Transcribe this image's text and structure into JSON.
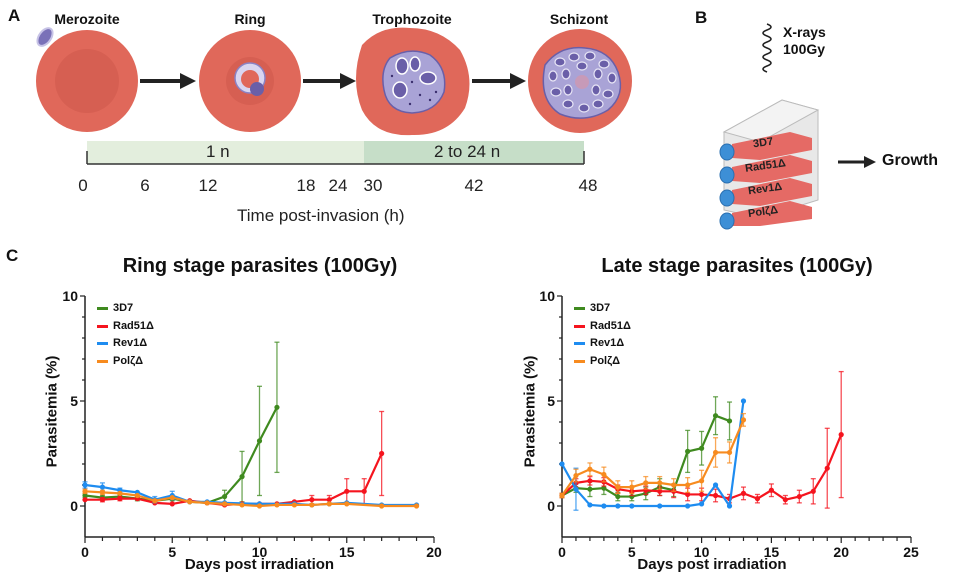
{
  "panel_a": {
    "letter": "A",
    "stages": [
      "Merozoite",
      "Ring",
      "Trophozoite",
      "Schizont"
    ],
    "timeline": {
      "segments": [
        {
          "label": "1 n",
          "color": "#e3eedd"
        },
        {
          "label": "2 to 24 n",
          "color": "#c6dec8"
        }
      ],
      "ticks": [
        "0",
        "6",
        "12",
        "18",
        "24",
        "30",
        "42",
        "48"
      ],
      "axis_label": "Time post-invasion (h)"
    }
  },
  "panel_b": {
    "letter": "B",
    "xray_line1": "X-rays",
    "xray_line2": "100Gy",
    "flasks": [
      "3D7",
      "Rad51Δ",
      "Rev1Δ",
      "PolζΔ"
    ],
    "growth_label": "Growth"
  },
  "panel_c": {
    "letter": "C"
  },
  "colors": {
    "rbc": "#e0685a",
    "rbc_dark": "#d85e50",
    "parasite": "#a9a3d6",
    "parasite_dark": "#6a5fa8",
    "cap": "#3d8fd6",
    "3D7": "#3f8a1f",
    "Rad51": "#f5141e",
    "Rev1": "#1e8cf0",
    "Polz": "#f78b1f"
  },
  "chart_data": [
    {
      "type": "line",
      "title": "Ring stage parasites (100Gy)",
      "xlabel": "Days post irradiation",
      "ylabel": "Parasitemia (%)",
      "xlim": [
        0,
        20
      ],
      "ylim": [
        -1.5,
        10
      ],
      "xticks": [
        "0",
        "5",
        "10",
        "15",
        "20"
      ],
      "yticks": [
        "0",
        "5",
        "10"
      ],
      "legend_position": "top-left",
      "series": [
        {
          "name": "3D7",
          "key": "3D7",
          "x": [
            0,
            1,
            2,
            3,
            4,
            5,
            6,
            7,
            8,
            9,
            10,
            11
          ],
          "y": [
            0.5,
            0.4,
            0.45,
            0.35,
            0.25,
            0.35,
            0.2,
            0.15,
            0.45,
            1.4,
            3.1,
            4.7
          ],
          "err": [
            0.1,
            0.1,
            0.1,
            0.1,
            0.1,
            0.1,
            0.05,
            0.05,
            0.3,
            1.2,
            2.6,
            3.1
          ]
        },
        {
          "name": "Rad51Δ",
          "key": "Rad51",
          "x": [
            0,
            1,
            2,
            3,
            4,
            5,
            6,
            7,
            8,
            9,
            10,
            11,
            12,
            13,
            14,
            15,
            16,
            17
          ],
          "y": [
            0.3,
            0.3,
            0.35,
            0.35,
            0.15,
            0.1,
            0.25,
            0.15,
            0.05,
            0.1,
            0.1,
            0.1,
            0.2,
            0.3,
            0.3,
            0.7,
            0.7,
            2.5
          ],
          "err": [
            0.05,
            0.1,
            0.1,
            0.05,
            0.05,
            0.05,
            0.05,
            0.05,
            0.05,
            0.05,
            0.05,
            0.05,
            0.05,
            0.2,
            0.2,
            0.6,
            0.6,
            2.0
          ]
        },
        {
          "name": "Rev1Δ",
          "key": "Rev1",
          "x": [
            0,
            1,
            2,
            3,
            4,
            5,
            6,
            7,
            8,
            10,
            12,
            13,
            14,
            15,
            17,
            19
          ],
          "y": [
            1.0,
            0.9,
            0.75,
            0.65,
            0.3,
            0.5,
            0.2,
            0.2,
            0.15,
            0.1,
            0.1,
            0.05,
            0.1,
            0.15,
            0.05,
            0.05
          ],
          "err": [
            0.15,
            0.2,
            0.1,
            0.05,
            0.15,
            0.2,
            0.05,
            0.05,
            0.05,
            0.05,
            0.05,
            0.05,
            0.05,
            0.05,
            0.05,
            0.05
          ]
        },
        {
          "name": "PolζΔ",
          "key": "Polz",
          "x": [
            0,
            1,
            2,
            3,
            4,
            5,
            6,
            7,
            8,
            9,
            10,
            11,
            12,
            13,
            14,
            15,
            17,
            19
          ],
          "y": [
            0.7,
            0.65,
            0.6,
            0.5,
            0.25,
            0.4,
            0.2,
            0.15,
            0.1,
            0.05,
            0.0,
            0.05,
            0.05,
            0.05,
            0.1,
            0.1,
            0.0,
            0.0
          ],
          "err": [
            0.1,
            0.1,
            0.05,
            0.05,
            0.05,
            0.05,
            0.05,
            0.05,
            0.05,
            0.05,
            0.05,
            0.05,
            0.05,
            0.05,
            0.05,
            0.05,
            0.05,
            0.05
          ]
        }
      ]
    },
    {
      "type": "line",
      "title": "Late stage parasites (100Gy)",
      "xlabel": "Days post irradiation",
      "ylabel": "Parasitemia (%)",
      "xlim": [
        0,
        25
      ],
      "ylim": [
        -1.5,
        10
      ],
      "xticks": [
        "0",
        "5",
        "10",
        "15",
        "20",
        "25"
      ],
      "yticks": [
        "0",
        "5",
        "10"
      ],
      "legend_position": "top-left",
      "series": [
        {
          "name": "3D7",
          "key": "3D7",
          "x": [
            0,
            1,
            2,
            3,
            4,
            5,
            6,
            7,
            8,
            9,
            10,
            11,
            12
          ],
          "y": [
            0.5,
            0.85,
            0.8,
            0.85,
            0.45,
            0.45,
            0.6,
            0.9,
            0.75,
            2.6,
            2.75,
            4.3,
            4.05
          ],
          "err": [
            0.1,
            0.2,
            0.35,
            0.3,
            0.2,
            0.2,
            0.3,
            0.4,
            0.3,
            1.0,
            0.8,
            0.9,
            0.9
          ]
        },
        {
          "name": "Rad51Δ",
          "key": "Rad51",
          "x": [
            0,
            1,
            2,
            3,
            4,
            5,
            6,
            7,
            8,
            9,
            10,
            11,
            12,
            13,
            14,
            15,
            16,
            17,
            18,
            19,
            20
          ],
          "y": [
            0.5,
            1.1,
            1.2,
            1.15,
            0.8,
            0.7,
            0.75,
            0.7,
            0.7,
            0.55,
            0.55,
            0.5,
            0.35,
            0.6,
            0.35,
            0.75,
            0.3,
            0.45,
            0.7,
            1.8,
            3.4
          ],
          "err": [
            0.1,
            0.2,
            0.2,
            0.2,
            0.2,
            0.2,
            0.2,
            0.2,
            0.3,
            0.3,
            0.3,
            0.3,
            0.2,
            0.3,
            0.2,
            0.3,
            0.2,
            0.3,
            0.6,
            1.9,
            3.0
          ]
        },
        {
          "name": "Rev1Δ",
          "key": "Rev1",
          "x": [
            0,
            1,
            2,
            3,
            4,
            5,
            7,
            9,
            10,
            11,
            12,
            13
          ],
          "y": [
            2.0,
            0.8,
            0.05,
            0.0,
            0.0,
            0.0,
            0.0,
            0.0,
            0.1,
            1.0,
            0.0,
            5.0
          ],
          "err": [
            0.05,
            1.0,
            0.05,
            0.05,
            0.05,
            0.05,
            0.05,
            0.05,
            0.05,
            0.05,
            0.05,
            0.05
          ]
        },
        {
          "name": "PolζΔ",
          "key": "Polz",
          "x": [
            0,
            1,
            2,
            3,
            4,
            5,
            6,
            7,
            8,
            9,
            10,
            11,
            12,
            13
          ],
          "y": [
            0.5,
            1.45,
            1.75,
            1.5,
            0.9,
            0.9,
            1.1,
            1.1,
            1.0,
            1.0,
            1.2,
            2.55,
            2.55,
            4.1
          ],
          "err": [
            0.1,
            0.3,
            0.3,
            0.35,
            0.3,
            0.3,
            0.3,
            0.3,
            0.3,
            0.35,
            0.5,
            0.7,
            0.5,
            0.3
          ]
        }
      ]
    }
  ]
}
